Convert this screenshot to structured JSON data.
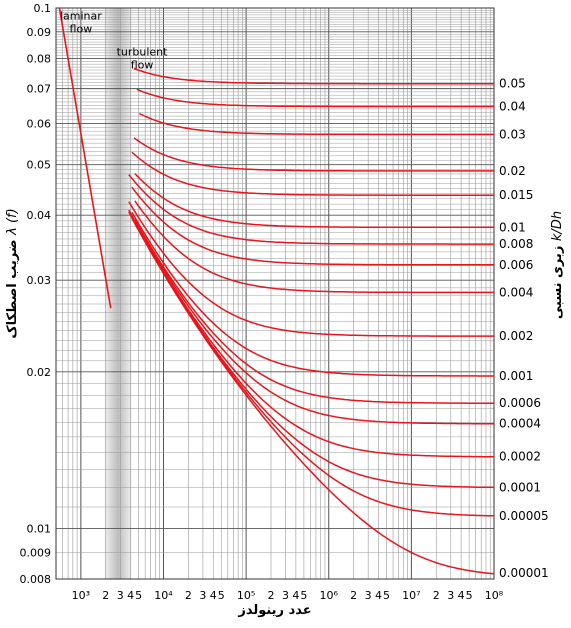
{
  "chart_data": {
    "type": "line",
    "xscale": "log",
    "yscale": "log",
    "xlim": [
      500,
      100000000
    ],
    "ylim": [
      0.008,
      0.1
    ],
    "xlabel": "عدد رینولدز",
    "ylabel_main": "ضریب اصطکاک",
    "ylabel_symbol": "λ (f)",
    "right_label_main": "زبری نسبی",
    "right_label_symbol": "k/Dh",
    "annotations": [
      {
        "text_lines": [
          "laminar",
          "flow"
        ],
        "x": 1000,
        "y": 0.095
      },
      {
        "text_lines": [
          "turbulent",
          "flow"
        ],
        "x": 5500,
        "y": 0.081
      }
    ],
    "transition_band": {
      "x": [
        2000,
        4000
      ]
    },
    "x_ticks": [
      {
        "label": "10³",
        "exp": "3",
        "value": 1000
      },
      {
        "label": "2",
        "value": 2000
      },
      {
        "label": "3",
        "value": 3000
      },
      {
        "label": "4",
        "value": 4000
      },
      {
        "label": "5",
        "value": 5000
      },
      {
        "label": "10⁴",
        "exp": "4",
        "value": 10000
      },
      {
        "label": "2",
        "value": 20000
      },
      {
        "label": "3",
        "value": 30000
      },
      {
        "label": "4",
        "value": 40000
      },
      {
        "label": "5",
        "value": 50000
      },
      {
        "label": "10⁵",
        "exp": "5",
        "value": 100000
      },
      {
        "label": "2",
        "value": 200000
      },
      {
        "label": "3",
        "value": 300000
      },
      {
        "label": "4",
        "value": 400000
      },
      {
        "label": "5",
        "value": 500000
      },
      {
        "label": "10⁶",
        "exp": "6",
        "value": 1000000
      },
      {
        "label": "2",
        "value": 2000000
      },
      {
        "label": "3",
        "value": 3000000
      },
      {
        "label": "4",
        "value": 4000000
      },
      {
        "label": "5",
        "value": 5000000
      },
      {
        "label": "10⁷",
        "exp": "7",
        "value": 10000000
      },
      {
        "label": "2",
        "value": 20000000
      },
      {
        "label": "3",
        "value": 30000000
      },
      {
        "label": "4",
        "value": 40000000
      },
      {
        "label": "5",
        "value": 50000000
      },
      {
        "label": "10⁸",
        "exp": "8",
        "value": 100000000
      }
    ],
    "y_ticks": [
      {
        "label": "0.1",
        "value": 0.1
      },
      {
        "label": "0.09",
        "value": 0.09
      },
      {
        "label": "0.08",
        "value": 0.08
      },
      {
        "label": "0.07",
        "value": 0.07
      },
      {
        "label": "0.06",
        "value": 0.06
      },
      {
        "label": "0.05",
        "value": 0.05
      },
      {
        "label": "0.04",
        "value": 0.04
      },
      {
        "label": "0.03",
        "value": 0.03
      },
      {
        "label": "0.02",
        "value": 0.02
      },
      {
        "label": "0.01",
        "value": 0.01
      },
      {
        "label": "0.009",
        "value": 0.009
      },
      {
        "label": "0.008",
        "value": 0.008
      }
    ],
    "laminar_line": {
      "x": [
        550,
        2300
      ],
      "y": [
        0.1,
        0.0265
      ]
    },
    "series": [
      {
        "label": "0.05",
        "value": 0.05
      },
      {
        "label": "0.04",
        "value": 0.04
      },
      {
        "label": "0.03",
        "value": 0.03
      },
      {
        "label": "0.02",
        "value": 0.02
      },
      {
        "label": "0.015",
        "value": 0.015
      },
      {
        "label": "0.01",
        "value": 0.01
      },
      {
        "label": "0.008",
        "value": 0.008
      },
      {
        "label": "0.006",
        "value": 0.006
      },
      {
        "label": "0.004",
        "value": 0.004
      },
      {
        "label": "0.002",
        "value": 0.002
      },
      {
        "label": "0.001",
        "value": 0.001
      },
      {
        "label": "0.0006",
        "value": 0.0006
      },
      {
        "label": "0.0004",
        "value": 0.0004
      },
      {
        "label": "0.0002",
        "value": 0.0002
      },
      {
        "label": "0.0001",
        "value": 0.0001
      },
      {
        "label": "0.00005",
        "value": 5e-05
      },
      {
        "label": "0.00001",
        "value": 1e-05
      }
    ],
    "colors": {
      "curve": "#e8151b",
      "grid_major": "#555555",
      "grid_minor": "#9a9a9a",
      "band": "#c8c8c8"
    }
  }
}
